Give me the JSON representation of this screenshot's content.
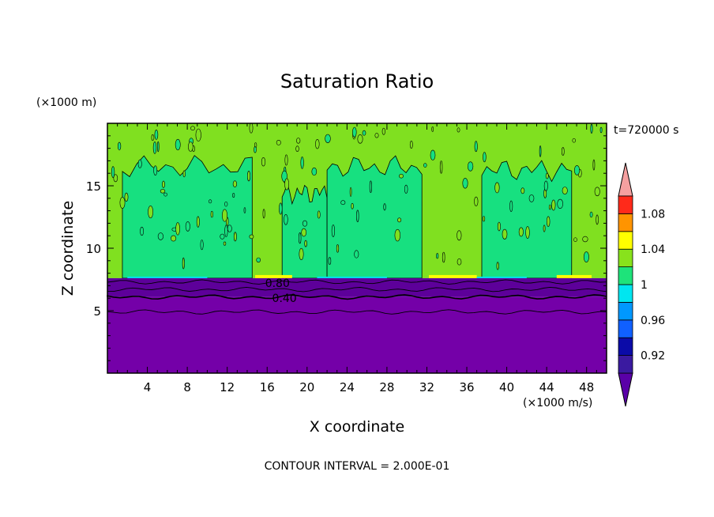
{
  "chart_data": {
    "type": "heatmap",
    "title": "Saturation Ratio",
    "xlabel": "X coordinate",
    "ylabel": "Z coordinate",
    "x_unit": "(×1000 m/s)",
    "y_unit": "(×1000 m)",
    "time_label": "t=720000 s",
    "footer": "CONTOUR INTERVAL = 2.000E-01",
    "xlim": [
      0,
      50
    ],
    "ylim": [
      0,
      20
    ],
    "x_ticks": [
      4,
      8,
      12,
      16,
      20,
      24,
      28,
      32,
      36,
      40,
      44,
      48
    ],
    "y_ticks": [
      5,
      10,
      15
    ],
    "contour_labels": [
      {
        "text": "0.80",
        "x": 15.8,
        "z": 7.2
      },
      {
        "text": "0.40",
        "x": 16.5,
        "z": 6.0
      }
    ],
    "contour_levels": [
      4.9,
      6.1,
      6.7,
      7.3
    ],
    "saturated_layer_top_z": 7.6,
    "colorbar": {
      "levels": [
        {
          "color": "#5a00a8",
          "range": "<0.90"
        },
        {
          "color": "#3a1aa0",
          "range": "0.90-0.92"
        },
        {
          "color": "#0b0ba8",
          "range": "0.92-0.94"
        },
        {
          "color": "#1060ff",
          "range": "0.94-0.96"
        },
        {
          "color": "#0098ff",
          "range": "0.96-0.98"
        },
        {
          "color": "#00e6f0",
          "range": "0.98-1.00"
        },
        {
          "color": "#1ee37a",
          "range": "1.00-1.02"
        },
        {
          "color": "#88e21c",
          "range": "1.02-1.04"
        },
        {
          "color": "#ffff00",
          "range": "1.04-1.06"
        },
        {
          "color": "#ff9400",
          "range": "1.06-1.08"
        },
        {
          "color": "#ff2a1a",
          "range": "1.08-1.10"
        },
        {
          "color": "#f5a0a0",
          "range": ">1.10"
        }
      ],
      "tick_labels": [
        "0.92",
        "0.96",
        "1",
        "1.04",
        "1.08"
      ]
    },
    "colors": {
      "below_cloud": "#7400a8",
      "cloud_green": "#80e020",
      "cloud_teal": "#17e080",
      "layer_dark": "#5d009a"
    }
  }
}
